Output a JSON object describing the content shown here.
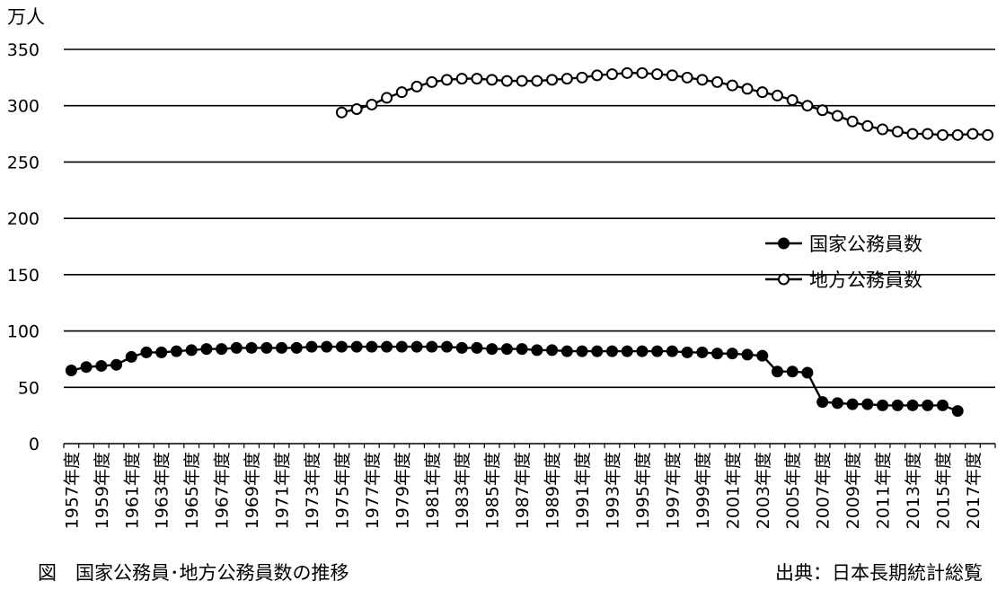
{
  "caption": "図　国家公務員･地方公務員数の推移",
  "source": "出典：日本長期統計総覧",
  "chart_data": {
    "type": "line",
    "ylabel": "万人",
    "ylim": [
      0,
      350
    ],
    "yticks": [
      0,
      50,
      100,
      150,
      200,
      250,
      300,
      350
    ],
    "grid": true,
    "legend": "center-right",
    "x": [
      1957,
      1958,
      1959,
      1960,
      1961,
      1962,
      1963,
      1964,
      1965,
      1966,
      1967,
      1968,
      1969,
      1970,
      1971,
      1972,
      1973,
      1974,
      1975,
      1976,
      1977,
      1978,
      1979,
      1980,
      1981,
      1982,
      1983,
      1984,
      1985,
      1986,
      1987,
      1988,
      1989,
      1990,
      1991,
      1992,
      1993,
      1994,
      1995,
      1996,
      1997,
      1998,
      1999,
      2000,
      2001,
      2002,
      2003,
      2004,
      2005,
      2006,
      2007,
      2008,
      2009,
      2010,
      2011,
      2012,
      2013,
      2014,
      2015,
      2016,
      2017,
      2018
    ],
    "x_tick_labels": [
      "1957年度",
      "1959年度",
      "1961年度",
      "1963年度",
      "1965年度",
      "1967年度",
      "1969年度",
      "1971年度",
      "1973年度",
      "1975年度",
      "1977年度",
      "1979年度",
      "1981年度",
      "1983年度",
      "1985年度",
      "1987年度",
      "1989年度",
      "1991年度",
      "1993年度",
      "1995年度",
      "1997年度",
      "1999年度",
      "2001年度",
      "2003年度",
      "2005年度",
      "2007年度",
      "2009年度",
      "2011年度",
      "2013年度",
      "2015年度",
      "2017年度"
    ],
    "series": [
      {
        "name": "国家公務員数",
        "marker": "filled-circle",
        "color": "#000000",
        "values": [
          65,
          68,
          69,
          70,
          77,
          81,
          81,
          82,
          83,
          84,
          84,
          85,
          85,
          85,
          85,
          85,
          86,
          86,
          86,
          86,
          86,
          86,
          86,
          86,
          86,
          86,
          85,
          85,
          84,
          84,
          84,
          83,
          83,
          82,
          82,
          82,
          82,
          82,
          82,
          82,
          82,
          81,
          81,
          80,
          80,
          79,
          78,
          64,
          64,
          63,
          37,
          36,
          35,
          35,
          34,
          34,
          34,
          34,
          34,
          29,
          null,
          null
        ]
      },
      {
        "name": "地方公務員数",
        "marker": "open-circle",
        "color": "#000000",
        "values": [
          null,
          null,
          null,
          null,
          null,
          null,
          null,
          null,
          null,
          null,
          null,
          null,
          null,
          null,
          null,
          null,
          null,
          null,
          294,
          297,
          301,
          307,
          312,
          317,
          321,
          323,
          324,
          324,
          323,
          322,
          322,
          322,
          323,
          324,
          325,
          327,
          328,
          329,
          329,
          328,
          327,
          325,
          323,
          321,
          318,
          315,
          312,
          309,
          305,
          300,
          296,
          291,
          286,
          282,
          279,
          277,
          275,
          275,
          274,
          274,
          275,
          274
        ]
      }
    ]
  }
}
